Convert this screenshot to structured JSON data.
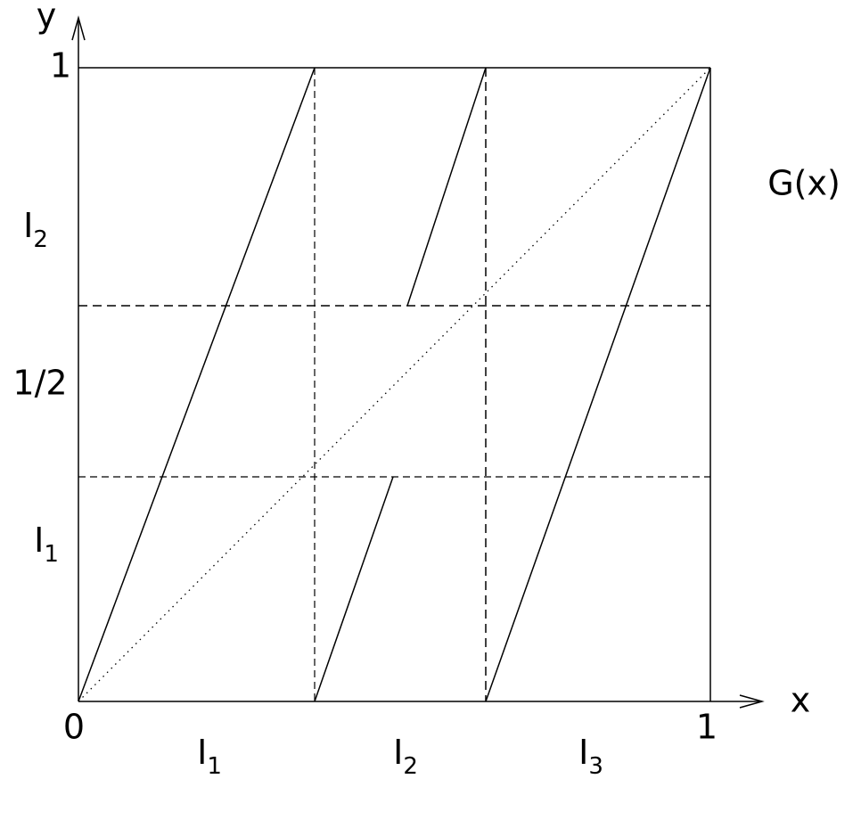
{
  "axes": {
    "y_label": "y",
    "x_label": "x",
    "origin": "0",
    "x_one": "1",
    "y_one": "1",
    "y_half": "1/2"
  },
  "function_label": "G(x)",
  "y_intervals": [
    {
      "base": "I",
      "sub": "1"
    },
    {
      "base": "I",
      "sub": "2"
    }
  ],
  "x_intervals": [
    {
      "base": "I",
      "sub": "1"
    },
    {
      "base": "I",
      "sub": "2"
    },
    {
      "base": "I",
      "sub": "3"
    }
  ]
}
